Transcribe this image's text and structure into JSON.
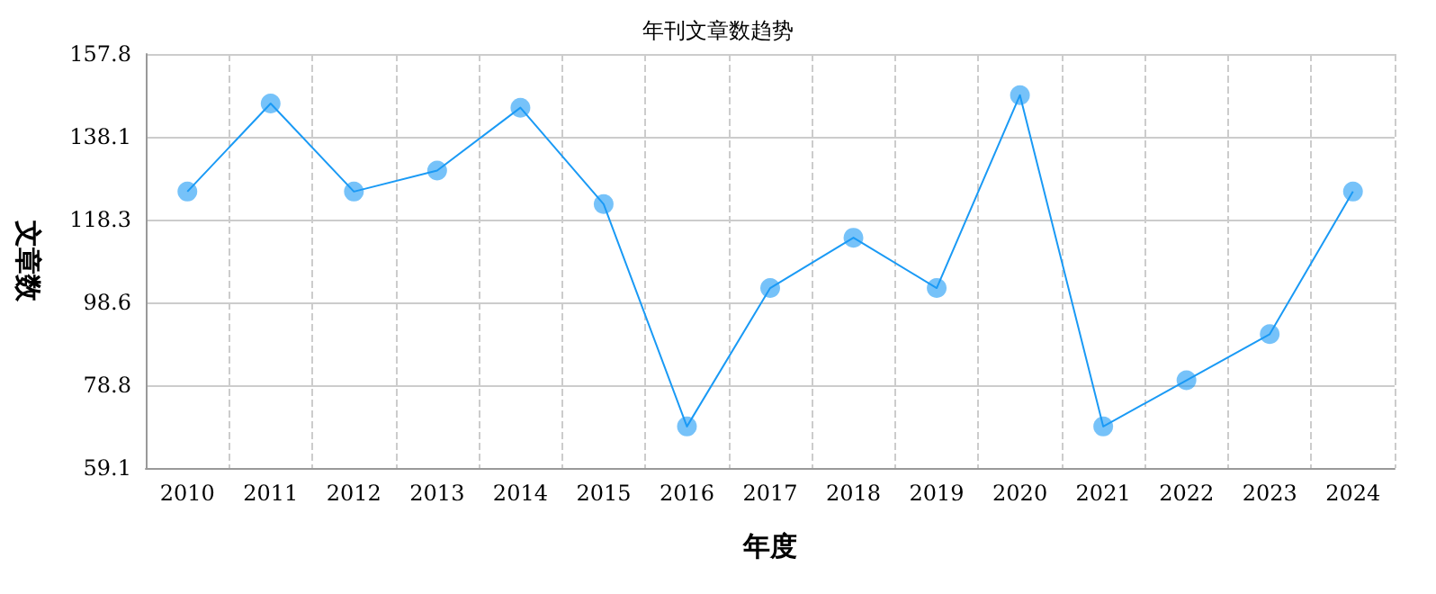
{
  "chart_data": {
    "type": "line",
    "title": "年刊文章数趋势",
    "xlabel": "年度",
    "ylabel": "文章数",
    "categories": [
      "2010",
      "2011",
      "2012",
      "2013",
      "2014",
      "2015",
      "2016",
      "2017",
      "2018",
      "2019",
      "2020",
      "2021",
      "2022",
      "2023",
      "2024"
    ],
    "series": [
      {
        "color": "#1a9af5",
        "values": [
          125,
          146,
          125,
          130,
          145,
          122,
          69,
          102,
          114,
          102,
          148,
          69,
          80,
          91,
          125
        ]
      }
    ],
    "ylim": [
      59.1,
      157.8
    ],
    "yticks": [
      59.1,
      78.8,
      98.6,
      118.3,
      138.1,
      157.8
    ],
    "grid": true,
    "marker": "circle",
    "line_style": "solid"
  }
}
